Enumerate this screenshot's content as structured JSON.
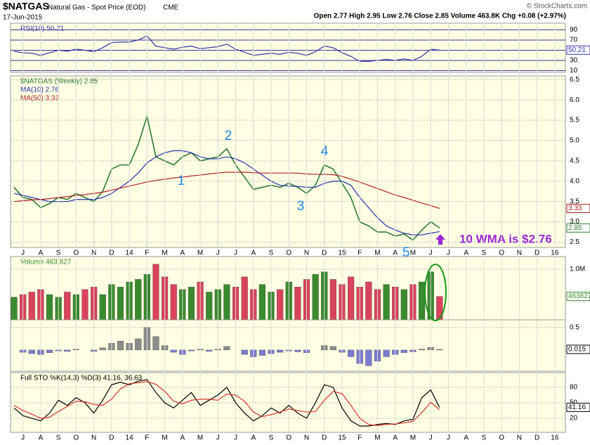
{
  "header": {
    "symbol": "$NATGAS",
    "name": "Natural Gas - Spot Price (EOD)",
    "exchange": "CME",
    "date": "17-Jun-2015",
    "credit": "© StockCharts.com",
    "quote": "Open 2.77  High 2.95  Low 2.76  Close 2.85  Volume 463.8K  Chg +0.08 (+2.97%)"
  },
  "chart_data": [
    {
      "type": "line",
      "xlim": [
        -0.7,
        30.6
      ],
      "ylim": [
        6.5,
        103
      ],
      "yticks": [
        90,
        70,
        50,
        30,
        10
      ],
      "x": [
        -0.5,
        0,
        0.5,
        1,
        1.5,
        2,
        2.5,
        3,
        3.5,
        4,
        4.5,
        5,
        5.5,
        6,
        6.5,
        7,
        7.5,
        8,
        8.5,
        9,
        9.5,
        10,
        10.5,
        11,
        11.5,
        12,
        12.5,
        13,
        13.5,
        14,
        14.5,
        15,
        15.5,
        16,
        16.5,
        17,
        17.5,
        18,
        18.5,
        19,
        19.5,
        20,
        20.5,
        21,
        21.5,
        22,
        22.5,
        23,
        23.5
      ],
      "series": [
        {
          "name": "RSI(10) 50.21",
          "color": "#3333aa",
          "last_label": true,
          "values": [
            48,
            45,
            44,
            40,
            45,
            50,
            48,
            52,
            50,
            47,
            55,
            65,
            66,
            66,
            70,
            78,
            58,
            55,
            52,
            56,
            58,
            53,
            55,
            57,
            62,
            52,
            46,
            40,
            42,
            44,
            42,
            46,
            44,
            40,
            47,
            58,
            55,
            45,
            38,
            28,
            28,
            30,
            32,
            30,
            33,
            30,
            38,
            52,
            50.21
          ]
        }
      ]
    },
    {
      "type": "line",
      "xlim": [
        -0.7,
        30.6
      ],
      "ylim": [
        2.37,
        6.59
      ],
      "yticks": [
        6.5,
        {
          "value": 6,
          "label": "6.0"
        },
        5.5,
        {
          "value": 5,
          "label": "5.0"
        },
        4.5,
        {
          "value": 4,
          "label": "4.0"
        },
        3.5,
        {
          "value": 3,
          "label": "3.0"
        },
        2.5
      ],
      "xticks": [
        {
          "value": 0,
          "label": "J"
        },
        {
          "value": 1,
          "label": "A"
        },
        {
          "value": 2,
          "label": "S"
        },
        {
          "value": 3,
          "label": "O"
        },
        {
          "value": 4,
          "label": "N"
        },
        {
          "value": 5,
          "label": "D"
        },
        {
          "value": 6,
          "label": "14"
        },
        {
          "value": 7,
          "label": "F"
        },
        {
          "value": 8,
          "label": "M"
        },
        {
          "value": 9,
          "label": "A"
        },
        {
          "value": 10,
          "label": "M"
        },
        {
          "value": 11,
          "label": "J"
        },
        {
          "value": 12,
          "label": "J"
        },
        {
          "value": 13,
          "label": "A"
        },
        {
          "value": 14,
          "label": "S"
        },
        {
          "value": 15,
          "label": "O"
        },
        {
          "value": 16,
          "label": "N"
        },
        {
          "value": 17,
          "label": "D"
        },
        {
          "value": 18,
          "label": "15"
        },
        {
          "value": 19,
          "label": "F"
        },
        {
          "value": 20,
          "label": "M"
        },
        {
          "value": 21,
          "label": "A"
        },
        {
          "value": 22,
          "label": "M"
        },
        {
          "value": 23,
          "label": "J"
        },
        {
          "value": 24,
          "label": "J"
        },
        {
          "value": 25,
          "label": "A"
        },
        {
          "value": 26,
          "label": "S"
        },
        {
          "value": 27,
          "label": "O"
        },
        {
          "value": 28,
          "label": "N"
        },
        {
          "value": 29,
          "label": "D"
        },
        {
          "value": 30,
          "label": "16"
        }
      ],
      "x": [
        -0.5,
        0,
        0.5,
        1,
        1.5,
        2,
        2.5,
        3,
        3.5,
        4,
        4.5,
        5,
        5.5,
        6,
        6.5,
        7,
        7.5,
        8,
        8.5,
        9,
        9.5,
        10,
        10.5,
        11,
        11.5,
        12,
        12.5,
        13,
        13.5,
        14,
        14.5,
        15,
        15.5,
        16,
        16.5,
        17,
        17.5,
        18,
        18.5,
        19,
        19.5,
        20,
        20.5,
        21,
        21.5,
        22,
        22.5,
        23,
        23.5
      ],
      "series": [
        {
          "name": "$NATGAS (Weekly) 2.85",
          "color": "#2e7d32",
          "last_label": true,
          "values": [
            3.85,
            3.6,
            3.55,
            3.35,
            3.45,
            3.6,
            3.55,
            3.7,
            3.6,
            3.5,
            3.75,
            4.3,
            4.4,
            4.4,
            4.9,
            5.6,
            4.6,
            4.5,
            4.4,
            4.6,
            4.7,
            4.5,
            4.55,
            4.6,
            4.8,
            4.4,
            4.1,
            3.8,
            3.85,
            3.9,
            3.85,
            3.95,
            3.85,
            3.7,
            3.9,
            4.4,
            4.3,
            3.95,
            3.6,
            3.0,
            2.9,
            2.75,
            2.75,
            2.65,
            2.7,
            2.55,
            2.8,
            3.0,
            2.85
          ]
        },
        {
          "name": "MA(10) 2.76",
          "color": "#2233aa",
          "values": [
            3.7,
            3.65,
            3.6,
            3.55,
            3.5,
            3.5,
            3.5,
            3.55,
            3.55,
            3.55,
            3.6,
            3.7,
            3.85,
            4.0,
            4.2,
            4.45,
            4.6,
            4.7,
            4.75,
            4.75,
            4.7,
            4.6,
            4.55,
            4.55,
            4.6,
            4.55,
            4.45,
            4.3,
            4.15,
            4.0,
            3.9,
            3.88,
            3.87,
            3.85,
            3.85,
            3.95,
            4.0,
            4.0,
            3.9,
            3.6,
            3.35,
            3.1,
            2.9,
            2.8,
            2.72,
            2.68,
            2.68,
            2.72,
            2.76
          ]
        },
        {
          "name": "MA(50) 3.33",
          "color": "#b22222",
          "last_label": true,
          "values": [
            3.5,
            3.52,
            3.54,
            3.55,
            3.57,
            3.6,
            3.62,
            3.65,
            3.67,
            3.7,
            3.73,
            3.78,
            3.83,
            3.88,
            3.93,
            3.98,
            4.02,
            4.05,
            4.08,
            4.1,
            4.13,
            4.15,
            4.18,
            4.2,
            4.22,
            4.22,
            4.22,
            4.21,
            4.2,
            4.2,
            4.2,
            4.2,
            4.2,
            4.18,
            4.17,
            4.17,
            4.16,
            4.12,
            4.05,
            3.98,
            3.9,
            3.82,
            3.74,
            3.66,
            3.6,
            3.53,
            3.46,
            3.4,
            3.33
          ]
        }
      ],
      "annotations": [
        "1",
        "2",
        "3",
        "4",
        "5",
        "10 WMA is $2.76"
      ]
    },
    {
      "type": "bar",
      "xlim": [
        -0.7,
        30.6
      ],
      "ylim": [
        0,
        1250000
      ],
      "yticks": [
        {
          "value": 1000000,
          "label": "1.0M"
        }
      ],
      "up_color": "#3a8a2e",
      "down_color": "#d9435b",
      "x": [
        -0.5,
        0,
        0.5,
        1,
        1.5,
        2,
        2.5,
        3,
        3.5,
        4,
        4.5,
        5,
        5.5,
        6,
        6.5,
        7,
        7.5,
        8,
        8.5,
        9,
        9.5,
        10,
        10.5,
        11,
        11.5,
        12,
        12.5,
        13,
        13.5,
        14,
        14.5,
        15,
        15.5,
        16,
        16.5,
        17,
        17.5,
        18,
        18.5,
        19,
        19.5,
        20,
        20.5,
        21,
        21.5,
        22,
        22.5,
        23,
        23.5
      ],
      "series": [
        {
          "name": "Volume 463,827",
          "color": "#3a8a2e",
          "last_label": true,
          "values": [
            450000,
            500000,
            550000,
            600000,
            500000,
            450000,
            550000,
            500000,
            600000,
            650000,
            500000,
            700000,
            650000,
            750000,
            800000,
            900000,
            1100000,
            850000,
            700000,
            600000,
            650000,
            750000,
            550000,
            600000,
            700000,
            650000,
            850000,
            600000,
            700000,
            550000,
            600000,
            750000,
            650000,
            800000,
            900000,
            950000,
            800000,
            700000,
            850000,
            650000,
            750000,
            600000,
            700000,
            650000,
            600000,
            700000,
            750000,
            950000,
            463827
          ]
        }
      ]
    },
    {
      "type": "bar",
      "xlim": [
        -0.7,
        30.6
      ],
      "ylim": [
        -0.47,
        0.67
      ],
      "yticks": [
        0.5
      ],
      "up_color": "#8c8c8c",
      "down_color": "#7b7bd0",
      "x": [
        -0.5,
        0,
        0.5,
        1,
        1.5,
        2,
        2.5,
        3,
        3.5,
        4,
        4.5,
        5,
        5.5,
        6,
        6.5,
        7,
        7.5,
        8,
        8.5,
        9,
        9.5,
        10,
        10.5,
        11,
        11.5,
        12,
        12.5,
        13,
        13.5,
        14,
        14.5,
        15,
        15.5,
        16,
        16.5,
        17,
        17.5,
        18,
        18.5,
        19,
        19.5,
        20,
        20.5,
        21,
        21.5,
        22,
        22.5,
        23,
        23.5
      ],
      "series": [
        {
          "color": "#000000",
          "last_label": true,
          "values": [
            0,
            -0.05,
            -0.08,
            -0.1,
            -0.06,
            -0.02,
            -0.03,
            0.02,
            0,
            -0.03,
            0.05,
            0.15,
            0.2,
            0.15,
            0.25,
            0.5,
            0.3,
            0.1,
            -0.05,
            -0.1,
            -0.02,
            0.02,
            -0.03,
            0.02,
            0.08,
            0,
            -0.1,
            -0.15,
            -0.12,
            -0.08,
            -0.05,
            -0.02,
            -0.04,
            -0.06,
            0,
            0.1,
            0.08,
            -0.05,
            -0.15,
            -0.3,
            -0.35,
            -0.25,
            -0.15,
            -0.1,
            -0.06,
            -0.04,
            0.02,
            0.06,
            0.015
          ]
        }
      ]
    },
    {
      "type": "line",
      "xlim": [
        -0.7,
        30.6
      ],
      "ylim": [
        -7.3,
        108.6
      ],
      "yticks": [
        80,
        50,
        20
      ],
      "title": "Full STO %K(14,3) %D(3) 41.16, 36.63",
      "xticks": [
        {
          "value": 0,
          "label": "J"
        },
        {
          "value": 1,
          "label": "A"
        },
        {
          "value": 2,
          "label": "S"
        },
        {
          "value": 3,
          "label": "O"
        },
        {
          "value": 4,
          "label": "N"
        },
        {
          "value": 5,
          "label": "D"
        },
        {
          "value": 6,
          "label": "14"
        },
        {
          "value": 7,
          "label": "F"
        },
        {
          "value": 8,
          "label": "M"
        },
        {
          "value": 9,
          "label": "A"
        },
        {
          "value": 10,
          "label": "M"
        },
        {
          "value": 11,
          "label": "J"
        },
        {
          "value": 12,
          "label": "J"
        },
        {
          "value": 13,
          "label": "A"
        },
        {
          "value": 14,
          "label": "S"
        },
        {
          "value": 15,
          "label": "O"
        },
        {
          "value": 16,
          "label": "N"
        },
        {
          "value": 17,
          "label": "D"
        },
        {
          "value": 18,
          "label": "15"
        },
        {
          "value": 19,
          "label": "F"
        },
        {
          "value": 20,
          "label": "M"
        },
        {
          "value": 21,
          "label": "A"
        },
        {
          "value": 22,
          "label": "M"
        },
        {
          "value": 23,
          "label": "J"
        },
        {
          "value": 24,
          "label": "J"
        },
        {
          "value": 25,
          "label": "A"
        },
        {
          "value": 26,
          "label": "S"
        },
        {
          "value": 27,
          "label": "O"
        },
        {
          "value": 28,
          "label": "N"
        },
        {
          "value": 29,
          "label": "D"
        },
        {
          "value": 30,
          "label": "16"
        }
      ],
      "x": [
        -0.5,
        0,
        0.5,
        1,
        1.5,
        2,
        2.5,
        3,
        3.5,
        4,
        4.5,
        5,
        5.5,
        6,
        6.5,
        7,
        7.5,
        8,
        8.5,
        9,
        9.5,
        10,
        10.5,
        11,
        11.5,
        12,
        12.5,
        13,
        13.5,
        14,
        14.5,
        15,
        15.5,
        16,
        16.5,
        17,
        17.5,
        18,
        18.5,
        19,
        19.5,
        20,
        20.5,
        21,
        21.5,
        22,
        22.5,
        23,
        23.5
      ],
      "series": [
        {
          "color": "#000000",
          "last_label": true,
          "values": [
            40,
            25,
            20,
            15,
            30,
            55,
            45,
            60,
            50,
            30,
            55,
            85,
            90,
            85,
            92,
            95,
            70,
            50,
            40,
            55,
            70,
            45,
            55,
            65,
            80,
            50,
            30,
            15,
            25,
            40,
            30,
            45,
            30,
            20,
            50,
            85,
            80,
            40,
            15,
            5,
            5,
            8,
            10,
            8,
            15,
            18,
            60,
            75,
            41.16
          ]
        },
        {
          "color": "#d9342b",
          "values": [
            45,
            35,
            28,
            20,
            22,
            33,
            43,
            53,
            52,
            47,
            45,
            57,
            77,
            87,
            89,
            91,
            86,
            72,
            53,
            48,
            55,
            57,
            57,
            55,
            67,
            65,
            53,
            32,
            23,
            27,
            32,
            38,
            35,
            32,
            33,
            55,
            72,
            68,
            45,
            20,
            8,
            6,
            8,
            9,
            11,
            14,
            31,
            51,
            36.63
          ]
        }
      ]
    }
  ]
}
